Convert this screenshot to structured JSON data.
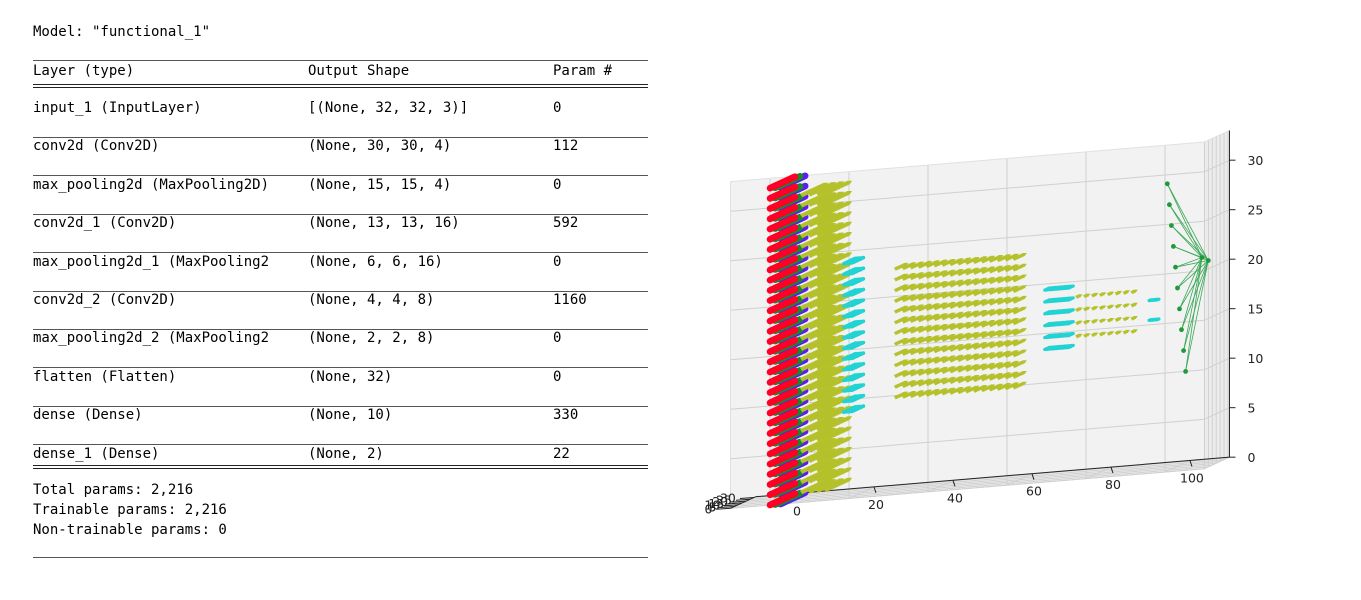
{
  "model_title": "Model: \"functional_1\"",
  "table": {
    "headers": [
      "Layer (type)",
      "Output Shape",
      "Param #"
    ],
    "rows": [
      {
        "layer": "input_1 (InputLayer)",
        "shape": "[(None, 32, 32, 3)]",
        "params": "0"
      },
      {
        "layer": "conv2d (Conv2D)",
        "shape": "(None, 30, 30, 4)",
        "params": "112"
      },
      {
        "layer": "max_pooling2d (MaxPooling2D)",
        "shape": "(None, 15, 15, 4)",
        "params": "0"
      },
      {
        "layer": "conv2d_1 (Conv2D)",
        "shape": "(None, 13, 13, 16)",
        "params": "592"
      },
      {
        "layer": "max_pooling2d_1 (MaxPooling2",
        "shape": "(None, 6, 6, 16)",
        "params": "0"
      },
      {
        "layer": "conv2d_2 (Conv2D)",
        "shape": "(None, 4, 4, 8)",
        "params": "1160"
      },
      {
        "layer": "max_pooling2d_2 (MaxPooling2",
        "shape": "(None, 2, 2, 8)",
        "params": "0"
      },
      {
        "layer": "flatten (Flatten)",
        "shape": "(None, 32)",
        "params": "0"
      },
      {
        "layer": "dense (Dense)",
        "shape": "(None, 10)",
        "params": "330"
      },
      {
        "layer": "dense_1 (Dense)",
        "shape": "(None, 2)",
        "params": "22"
      }
    ]
  },
  "totals": {
    "total": "Total params: 2,216",
    "trainable": "Trainable params: 2,216",
    "non_trainable": "Non-trainable params: 0"
  },
  "plot": {
    "x_ticks": [
      "0",
      "20",
      "40",
      "60",
      "80",
      "100"
    ],
    "y_ticks": [
      "0",
      "5",
      "10",
      "15",
      "20",
      "25",
      "30"
    ],
    "z_ticks": [
      "0",
      "5",
      "10",
      "15",
      "20",
      "25",
      "30"
    ],
    "colors": {
      "red": "#ff0026",
      "green": "#1a8a2a",
      "blue": "#5a1ef0",
      "olive": "#b5c12a",
      "cyan": "#22d3d3",
      "dense_green": "#1f9a3a"
    }
  }
}
